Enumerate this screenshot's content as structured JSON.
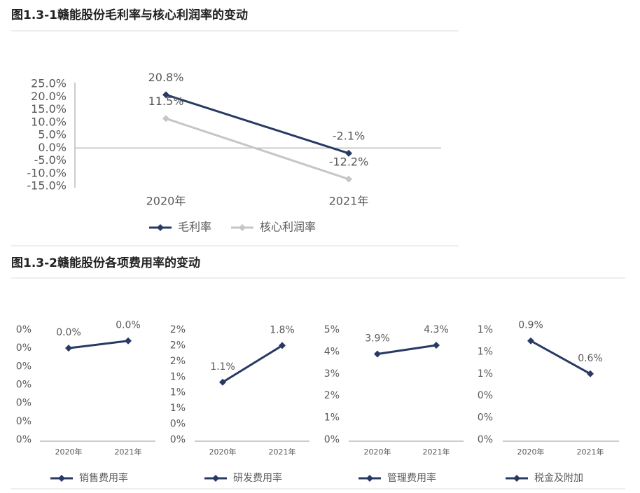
{
  "chart_data": [
    {
      "type": "line",
      "title": "图1.3-1赣能股份毛利率与核心利润率的变动",
      "categories": [
        "2020年",
        "2021年"
      ],
      "series": [
        {
          "name": "毛利率",
          "color": "#283a64",
          "values": [
            20.8,
            -2.1
          ],
          "value_labels": [
            "20.8%",
            "-2.1%"
          ]
        },
        {
          "name": "核心利润率",
          "color": "#c6c6c6",
          "values": [
            11.5,
            -12.2
          ],
          "value_labels": [
            "11.5%",
            "-12.2%"
          ]
        }
      ],
      "ylim": [
        -15,
        25
      ],
      "yticks": [
        {
          "value": -15,
          "label": "-15.0%"
        },
        {
          "value": -10,
          "label": "-10.0%"
        },
        {
          "value": -5,
          "label": "-5.0%"
        },
        {
          "value": 0,
          "label": "0.0%"
        },
        {
          "value": 5,
          "label": "5.0%"
        },
        {
          "value": 10,
          "label": "10.0%"
        },
        {
          "value": 15,
          "label": "15.0%"
        },
        {
          "value": 20,
          "label": "20.0%"
        },
        {
          "value": 25,
          "label": "25.0%"
        }
      ]
    },
    {
      "type": "line",
      "title": "图1.3-2赣能股份各项费用率的变动",
      "categories": [
        "2020年",
        "2021年"
      ],
      "series": [
        {
          "name": "销售费用率",
          "color": "#283a64",
          "values": [
            0.025,
            0.027
          ],
          "value_labels": [
            "0.0%",
            "0.0%"
          ]
        }
      ],
      "ylim": [
        0,
        0.03
      ],
      "yticks": [
        {
          "value": 0,
          "label": "0%"
        },
        {
          "value": 0.005,
          "label": "0%"
        },
        {
          "value": 0.01,
          "label": "0%"
        },
        {
          "value": 0.015,
          "label": "0%"
        },
        {
          "value": 0.02,
          "label": "0%"
        },
        {
          "value": 0.025,
          "label": "0%"
        },
        {
          "value": 0.03,
          "label": "0%"
        }
      ]
    },
    {
      "type": "line",
      "categories": [
        "2020年",
        "2021年"
      ],
      "series": [
        {
          "name": "研发费用率",
          "color": "#283a64",
          "values": [
            1.1,
            1.8
          ],
          "value_labels": [
            "1.1%",
            "1.8%"
          ]
        }
      ],
      "ylim": [
        0,
        2.1
      ],
      "yticks": [
        {
          "value": 0,
          "label": "0%"
        },
        {
          "value": 0.3,
          "label": "0%"
        },
        {
          "value": 0.6,
          "label": "1%"
        },
        {
          "value": 0.9,
          "label": "1%"
        },
        {
          "value": 1.2,
          "label": "1%"
        },
        {
          "value": 1.5,
          "label": "2%"
        },
        {
          "value": 1.8,
          "label": "2%"
        },
        {
          "value": 2.1,
          "label": "2%"
        }
      ]
    },
    {
      "type": "line",
      "categories": [
        "2020年",
        "2021年"
      ],
      "series": [
        {
          "name": "管理费用率",
          "color": "#283a64",
          "values": [
            3.9,
            4.3
          ],
          "value_labels": [
            "3.9%",
            "4.3%"
          ]
        }
      ],
      "ylim": [
        0,
        5
      ],
      "yticks": [
        {
          "value": 0,
          "label": "0%"
        },
        {
          "value": 1,
          "label": "1%"
        },
        {
          "value": 2,
          "label": "2%"
        },
        {
          "value": 3,
          "label": "3%"
        },
        {
          "value": 4,
          "label": "4%"
        },
        {
          "value": 5,
          "label": "5%"
        }
      ]
    },
    {
      "type": "line",
      "categories": [
        "2020年",
        "2021年"
      ],
      "series": [
        {
          "name": "税金及附加",
          "color": "#283a64",
          "values": [
            0.9,
            0.6
          ],
          "value_labels": [
            "0.9%",
            "0.6%"
          ]
        }
      ],
      "ylim": [
        0,
        1
      ],
      "yticks": [
        {
          "value": 0,
          "label": "0%"
        },
        {
          "value": 0.2,
          "label": "0%"
        },
        {
          "value": 0.4,
          "label": "0%"
        },
        {
          "value": 0.6,
          "label": "1%"
        },
        {
          "value": 0.8,
          "label": "1%"
        },
        {
          "value": 1,
          "label": "1%"
        }
      ]
    }
  ]
}
